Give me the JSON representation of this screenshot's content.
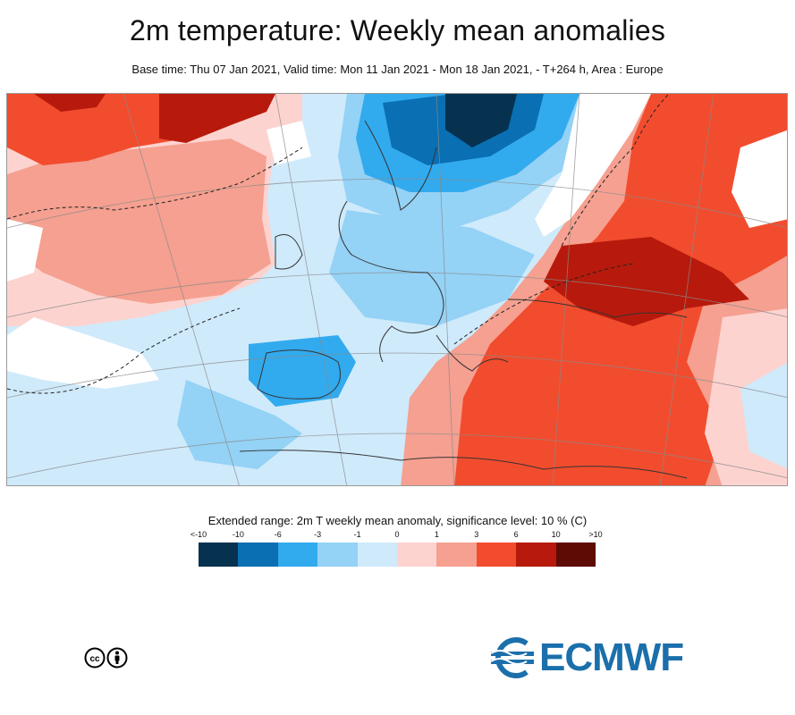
{
  "header": {
    "title": "2m temperature: Weekly mean anomalies",
    "subtitle": "Base time: Thu 07 Jan 2021, Valid time: Mon 11 Jan 2021 - Mon 18 Jan 2021, - T+264 h, Area : Europe"
  },
  "legend": {
    "title": "Extended range: 2m T weekly mean anomaly, significance level: 10 % (C)",
    "tick_labels": [
      "<-10",
      "-10",
      "-6",
      "-3",
      "-1",
      "0",
      "1",
      "3",
      "6",
      "10",
      ">10"
    ],
    "colors": [
      "#06324f",
      "#0a6fb3",
      "#32aaee",
      "#94d2f6",
      "#cfeafb",
      "#fdd3d0",
      "#f5a090",
      "#f24c2e",
      "#b71a0c",
      "#5e0a05"
    ]
  },
  "footer": {
    "license_icon": "cc-by-icon",
    "logo_text": "ECMWF"
  }
}
